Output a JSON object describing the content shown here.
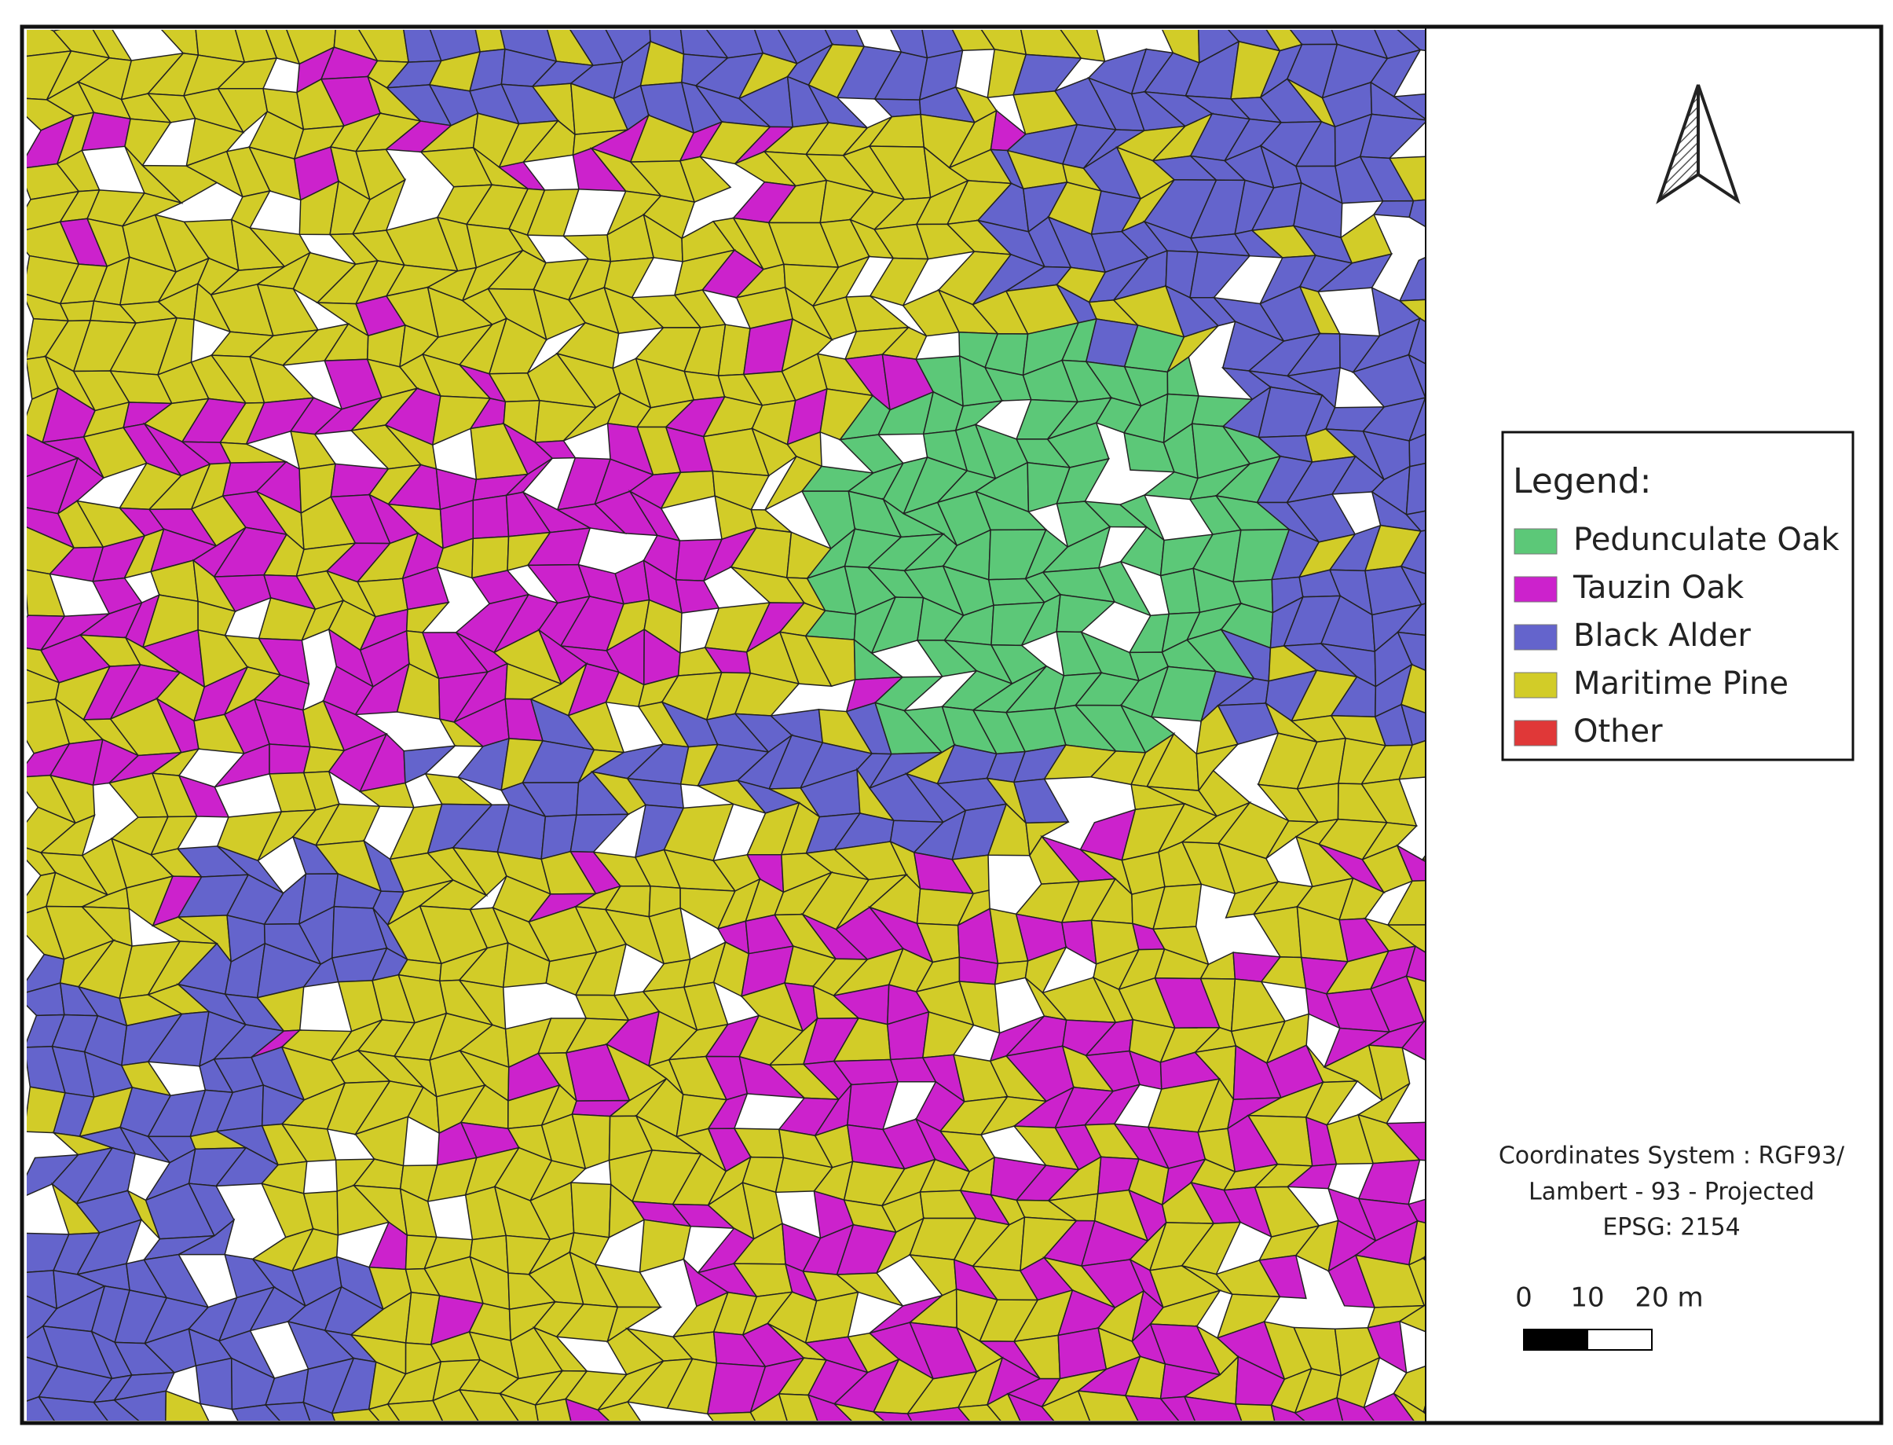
{
  "legend": {
    "title": "Legend:",
    "items": [
      {
        "label": "Pedunculate Oak",
        "color": "#5cc878"
      },
      {
        "label": "Tauzin Oak",
        "color": "#cc22cc"
      },
      {
        "label": "Black Alder",
        "color": "#6464cc"
      },
      {
        "label": "Maritime Pine",
        "color": "#d2cc28"
      },
      {
        "label": "Other",
        "color": "#e03838"
      }
    ]
  },
  "coordinates": [
    "Coordinates System : RGF93/",
    "Lambert - 93 - Projected",
    "EPSG: 2154"
  ],
  "scale_bar": {
    "labels": [
      "0",
      "10",
      "20 m"
    ]
  }
}
